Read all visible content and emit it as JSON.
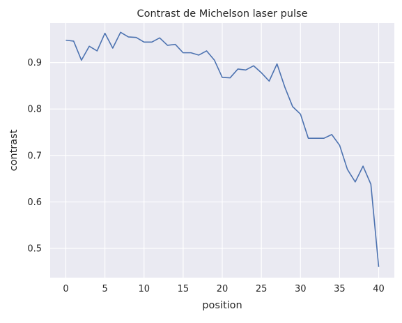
{
  "chart_data": {
    "type": "line",
    "title": "Contrast de Michelson laser pulse",
    "xlabel": "position",
    "ylabel": "contrast",
    "xlim": [
      -2,
      42
    ],
    "ylim": [
      0.437,
      0.985
    ],
    "grid": true,
    "x_ticks": [
      0,
      5,
      10,
      15,
      20,
      25,
      30,
      35,
      40
    ],
    "x_tick_labels": [
      "0",
      "5",
      "10",
      "15",
      "20",
      "25",
      "30",
      "35",
      "40"
    ],
    "y_ticks": [
      0.5,
      0.6,
      0.7,
      0.8,
      0.9
    ],
    "y_tick_labels": [
      "0.5",
      "0.6",
      "0.7",
      "0.8",
      "0.9"
    ],
    "line_color": "#4c72b0",
    "background_color": "#eaeaf2",
    "series": [
      {
        "x": [
          0,
          1,
          2,
          3,
          4,
          5,
          6,
          7,
          8,
          9,
          10,
          11,
          12,
          13,
          14,
          15,
          16,
          17,
          18,
          19,
          20,
          21,
          22,
          23,
          24,
          25,
          26,
          27,
          28,
          29,
          30,
          31,
          32,
          33,
          34,
          35,
          36,
          37,
          38,
          39,
          40
        ],
        "values": [
          0.948,
          0.946,
          0.905,
          0.935,
          0.925,
          0.963,
          0.931,
          0.965,
          0.955,
          0.954,
          0.944,
          0.944,
          0.953,
          0.937,
          0.939,
          0.921,
          0.921,
          0.916,
          0.925,
          0.905,
          0.868,
          0.867,
          0.886,
          0.884,
          0.893,
          0.878,
          0.86,
          0.897,
          0.847,
          0.805,
          0.789,
          0.737,
          0.737,
          0.737,
          0.745,
          0.722,
          0.67,
          0.643,
          0.677,
          0.638,
          0.46
        ]
      }
    ]
  }
}
